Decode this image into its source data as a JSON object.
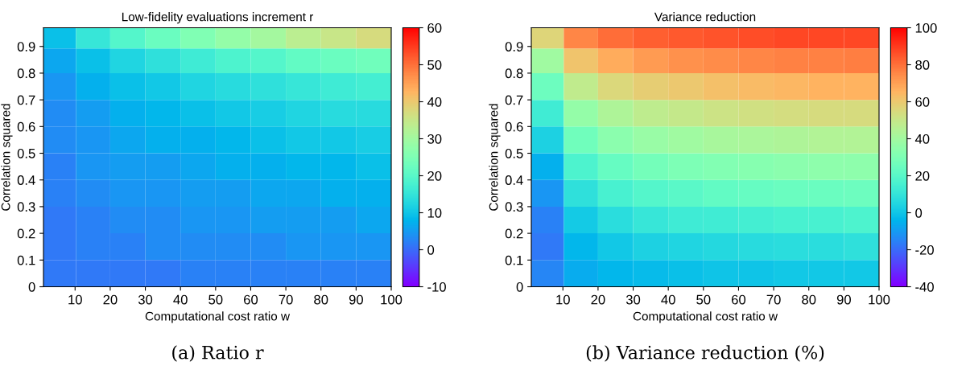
{
  "chart_data": [
    {
      "type": "heatmap",
      "title": "Low-fidelity evaluations increment r",
      "xlabel": "Computational cost ratio w",
      "ylabel": "Correlation squared",
      "x": [
        5.5,
        15,
        25,
        35,
        45,
        55,
        65,
        75,
        85,
        95
      ],
      "y": [
        0.935,
        0.85,
        0.75,
        0.65,
        0.55,
        0.45,
        0.35,
        0.25,
        0.15,
        0.05
      ],
      "cells": [
        [
          9,
          15,
          19,
          22,
          25,
          28,
          30,
          33,
          35,
          37
        ],
        [
          6,
          9,
          12,
          14,
          16,
          18,
          19,
          21,
          22,
          23
        ],
        [
          4,
          7,
          9,
          10,
          12,
          13,
          14,
          15,
          16,
          17
        ],
        [
          3,
          5,
          7,
          8,
          9,
          10,
          11,
          12,
          13,
          13
        ],
        [
          3,
          4,
          6,
          7,
          7,
          8,
          9,
          10,
          10,
          11
        ],
        [
          2,
          4,
          5,
          5,
          6,
          7,
          7,
          8,
          8,
          9
        ],
        [
          2,
          3,
          4,
          4,
          5,
          5,
          6,
          6,
          7,
          7
        ],
        [
          1,
          2,
          3,
          3,
          4,
          4,
          5,
          5,
          5,
          6
        ],
        [
          1,
          2,
          2,
          3,
          3,
          3,
          3,
          4,
          4,
          4
        ],
        [
          1,
          1,
          1,
          1,
          2,
          2,
          2,
          2,
          2,
          2
        ]
      ],
      "xlim": [
        1,
        100
      ],
      "xticks": [
        10,
        20,
        30,
        40,
        50,
        60,
        70,
        80,
        90,
        100
      ],
      "ylim": [
        0,
        0.97
      ],
      "yticks": [
        0,
        0.1,
        0.2,
        0.3,
        0.4,
        0.5,
        0.6,
        0.7,
        0.8,
        0.9
      ],
      "clim": [
        -10,
        60
      ],
      "cticks": [
        -10,
        0,
        10,
        20,
        30,
        40,
        50,
        60
      ],
      "annotations": [
        "(a) Ratio r"
      ]
    },
    {
      "type": "heatmap",
      "title": "Variance reduction",
      "xlabel": "Computational cost ratio w",
      "ylabel": "Correlation squared",
      "x": [
        5.5,
        15,
        25,
        35,
        45,
        55,
        65,
        75,
        85,
        95
      ],
      "y": [
        0.935,
        0.85,
        0.75,
        0.65,
        0.55,
        0.45,
        0.35,
        0.25,
        0.15,
        0.05
      ],
      "cells": [
        [
          56,
          75,
          80,
          83,
          84,
          85,
          86,
          87,
          87,
          87
        ],
        [
          39,
          61,
          67,
          71,
          73,
          74,
          75,
          76,
          76,
          77
        ],
        [
          25,
          48,
          55,
          58,
          60,
          62,
          63,
          64,
          65,
          65
        ],
        [
          13,
          36,
          43,
          47,
          49,
          51,
          52,
          53,
          54,
          54
        ],
        [
          3,
          26,
          33,
          37,
          39,
          41,
          42,
          43,
          44,
          44
        ],
        [
          -6,
          16,
          23,
          27,
          29,
          31,
          32,
          33,
          34,
          34
        ],
        [
          -12,
          8,
          15,
          18,
          20,
          22,
          23,
          24,
          24,
          25
        ],
        [
          -16,
          1,
          7,
          10,
          12,
          13,
          14,
          15,
          15,
          16
        ],
        [
          -18,
          -4,
          0,
          3,
          4,
          5,
          6,
          7,
          7,
          8
        ],
        [
          -15,
          -7,
          -4,
          -3,
          -2,
          -1,
          -1,
          0,
          0,
          0
        ]
      ],
      "xlim": [
        1,
        100
      ],
      "xticks": [
        10,
        20,
        30,
        40,
        50,
        60,
        70,
        80,
        90,
        100
      ],
      "ylim": [
        0,
        0.97
      ],
      "yticks": [
        0,
        0.1,
        0.2,
        0.3,
        0.4,
        0.5,
        0.6,
        0.7,
        0.8,
        0.9
      ],
      "clim": [
        -40,
        100
      ],
      "cticks": [
        -40,
        -20,
        0,
        20,
        40,
        60,
        80,
        100
      ],
      "annotations": [
        "(b) Variance reduction (%)"
      ]
    }
  ]
}
